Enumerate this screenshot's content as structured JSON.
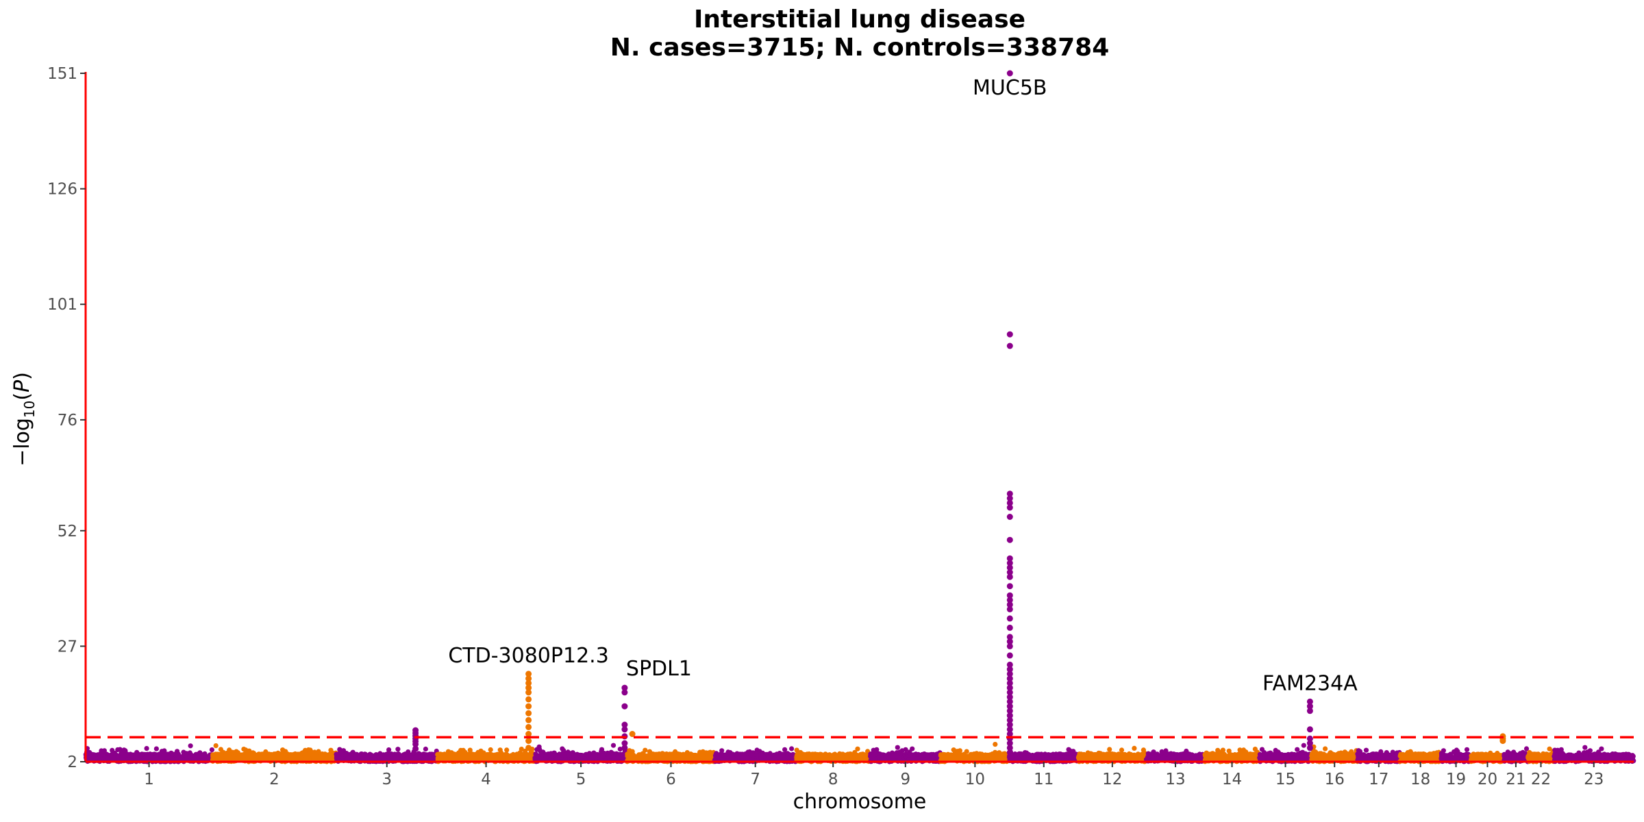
{
  "chart_data": {
    "type": "scatter",
    "subtype": "manhattan",
    "title": "Interstitial lung disease",
    "subtitle": "N. cases=3715; N. controls=338784",
    "xlabel": "chromosome",
    "ylabel": "−log10(P)",
    "ylim": [
      2,
      151
    ],
    "yticks": [
      2,
      27,
      52,
      76,
      101,
      126,
      151
    ],
    "significance_threshold": 7.3,
    "threshold_color": "#ff0000",
    "series_colors": [
      "#8b008b",
      "#ee7600"
    ],
    "axis_color": "#ff0000",
    "grid": false,
    "chromosomes": [
      {
        "label": "1",
        "start": 0,
        "end": 248
      },
      {
        "label": "2",
        "start": 248,
        "end": 490
      },
      {
        "label": "3",
        "start": 490,
        "end": 688
      },
      {
        "label": "4",
        "start": 688,
        "end": 878
      },
      {
        "label": "5",
        "start": 878,
        "end": 1059
      },
      {
        "label": "6",
        "start": 1059,
        "end": 1230
      },
      {
        "label": "7",
        "start": 1230,
        "end": 1389
      },
      {
        "label": "8",
        "start": 1389,
        "end": 1534
      },
      {
        "label": "9",
        "start": 1534,
        "end": 1672
      },
      {
        "label": "10",
        "start": 1672,
        "end": 1806
      },
      {
        "label": "11",
        "start": 1806,
        "end": 1941
      },
      {
        "label": "12",
        "start": 1941,
        "end": 2074
      },
      {
        "label": "13",
        "start": 2074,
        "end": 2188
      },
      {
        "label": "14",
        "start": 2188,
        "end": 2295
      },
      {
        "label": "15",
        "start": 2295,
        "end": 2397
      },
      {
        "label": "16",
        "start": 2397,
        "end": 2487
      },
      {
        "label": "17",
        "start": 2487,
        "end": 2570
      },
      {
        "label": "18",
        "start": 2570,
        "end": 2650
      },
      {
        "label": "19",
        "start": 2650,
        "end": 2709
      },
      {
        "label": "20",
        "start": 2709,
        "end": 2773
      },
      {
        "label": "21",
        "start": 2773,
        "end": 2820
      },
      {
        "label": "22",
        "start": 2820,
        "end": 2871
      },
      {
        "label": "23",
        "start": 2871,
        "end": 3027
      }
    ],
    "peaks": [
      {
        "chrom": "3",
        "pos": 155,
        "values": [
          4.8,
          5.8,
          6.4,
          7.0,
          7.6,
          8.2,
          8.8
        ]
      },
      {
        "chrom": "4",
        "pos": 178,
        "values": [
          5,
          6.5,
          8,
          9.5,
          11,
          12.5,
          14,
          15.5,
          17,
          18,
          19,
          20,
          21
        ]
      },
      {
        "chrom": "5",
        "pos": 176,
        "values": [
          5,
          6,
          7.5,
          9,
          10,
          14,
          17,
          18
        ]
      },
      {
        "chrom": "6",
        "pos": 10,
        "values": [
          8
        ]
      },
      {
        "chrom": "11",
        "pos": 1.2,
        "values": [
          3,
          4,
          5,
          6,
          7,
          8,
          9,
          10,
          11,
          12,
          13,
          14,
          15,
          16,
          17,
          18,
          19,
          20,
          21,
          22,
          23,
          25,
          27,
          28,
          29,
          31,
          33,
          35,
          36,
          37,
          38,
          40,
          42,
          43,
          44,
          45,
          46,
          50,
          55,
          57,
          58,
          59,
          60,
          92,
          94.5,
          151
        ]
      },
      {
        "chrom": "15",
        "pos": 99,
        "values": [
          5,
          6,
          7,
          9,
          13,
          14,
          15
        ]
      },
      {
        "chrom": "20",
        "pos": 62,
        "values": [
          6.5,
          7.0,
          7.5
        ]
      }
    ],
    "annotations": [
      {
        "text": "MUC5B",
        "chrom": "11",
        "pos": 1.2,
        "y": 151
      },
      {
        "text": "CTD-3080P12.3",
        "chrom": "4",
        "pos": 178,
        "y": 21
      },
      {
        "text": "SPDL1",
        "chrom": "5",
        "pos": 176,
        "y": 18
      },
      {
        "text": "FAM234A",
        "chrom": "15",
        "pos": 99,
        "y": 15
      }
    ]
  }
}
